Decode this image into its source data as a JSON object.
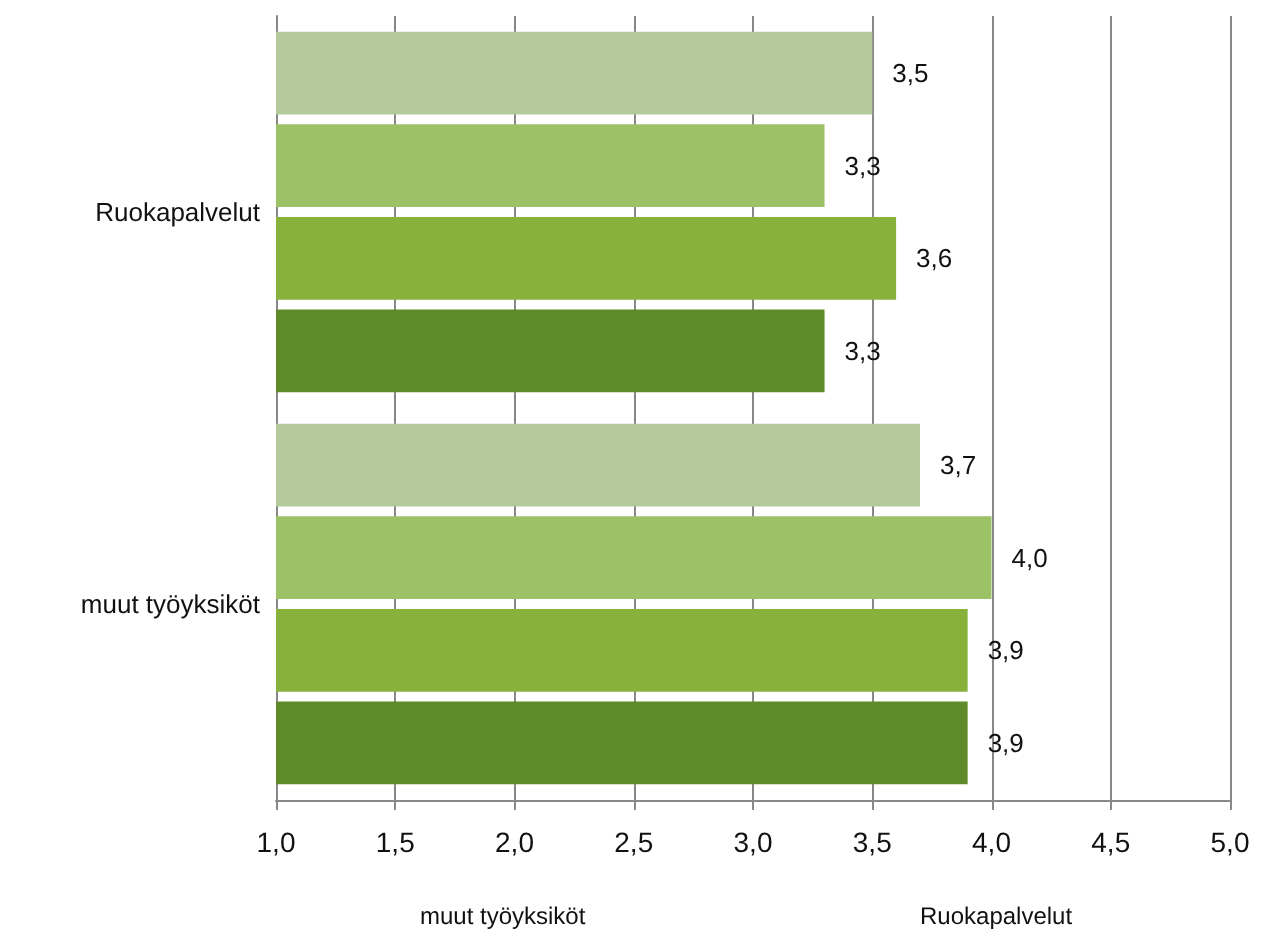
{
  "chart_data": {
    "type": "bar",
    "orientation": "horizontal",
    "categories": [
      "Ruokapalvelut",
      "muut työyksiköt"
    ],
    "series": [
      {
        "color": "#b4c99c",
        "values": [
          3.5,
          3.7
        ],
        "value_labels": [
          "3,5",
          "3,7"
        ]
      },
      {
        "color": "#9cc267",
        "values": [
          3.3,
          4.0
        ],
        "value_labels": [
          "3,3",
          "4,0"
        ]
      },
      {
        "color": "#86b23c",
        "values": [
          3.6,
          3.9
        ],
        "value_labels": [
          "3,6",
          "3,9"
        ]
      },
      {
        "color": "#5f8a2a",
        "values": [
          3.3,
          3.9
        ],
        "value_labels": [
          "3,3",
          "3,9"
        ]
      }
    ],
    "xlim": [
      1,
      5
    ],
    "xticks": [
      {
        "value": 1,
        "label": "1,0"
      },
      {
        "value": 1.5,
        "label": "1,5"
      },
      {
        "value": 2,
        "label": "2,0"
      },
      {
        "value": 2.5,
        "label": "2,5"
      },
      {
        "value": 3,
        "label": "3,0"
      },
      {
        "value": 3.5,
        "label": "3,5"
      },
      {
        "value": 4,
        "label": "4,0"
      },
      {
        "value": 4.5,
        "label": "4,5"
      },
      {
        "value": 5,
        "label": "5,0"
      }
    ],
    "grid": "x",
    "annotations": [
      "muut työyksiköt",
      "Ruokapalvelut"
    ]
  }
}
